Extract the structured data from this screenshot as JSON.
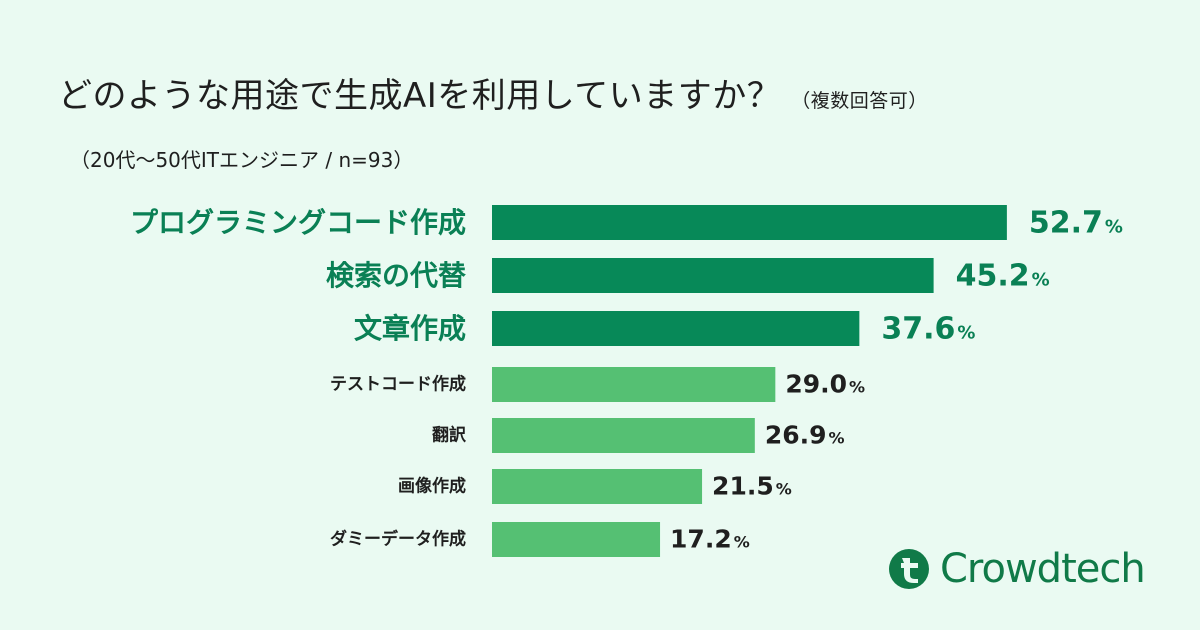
{
  "title": "どのような用途で生成AIを利用していますか？",
  "title_note": "（複数回答可）",
  "subtitle": "（20代〜50代ITエンジニア / n=93）",
  "colors": {
    "top_bar": "#078958",
    "other_bar": "#55c073",
    "top_text": "#0a8055",
    "other_text": "#1f1f1f",
    "background": "#eafaf2"
  },
  "chart_data": {
    "type": "bar",
    "orientation": "horizontal",
    "categories": [
      "プログラミングコード作成",
      "検索の代替",
      "文章作成",
      "テストコード作成",
      "翻訳",
      "画像作成",
      "ダミーデータ作成"
    ],
    "values": [
      52.7,
      45.2,
      37.6,
      29.0,
      26.9,
      21.5,
      17.2
    ],
    "value_labels": [
      "52.7",
      "45.2",
      "37.6",
      "29.0",
      "26.9",
      "21.5",
      "17.2"
    ],
    "unit": "%",
    "highlight_top_n": 3,
    "title": "どのような用途で生成AIを利用していますか？",
    "xlabel": "",
    "ylabel": "",
    "xlim": [
      0,
      60
    ],
    "grid": false
  },
  "logo": {
    "wordmark": "Crowdtech",
    "icon": "crowdtech-t-logo-icon"
  }
}
